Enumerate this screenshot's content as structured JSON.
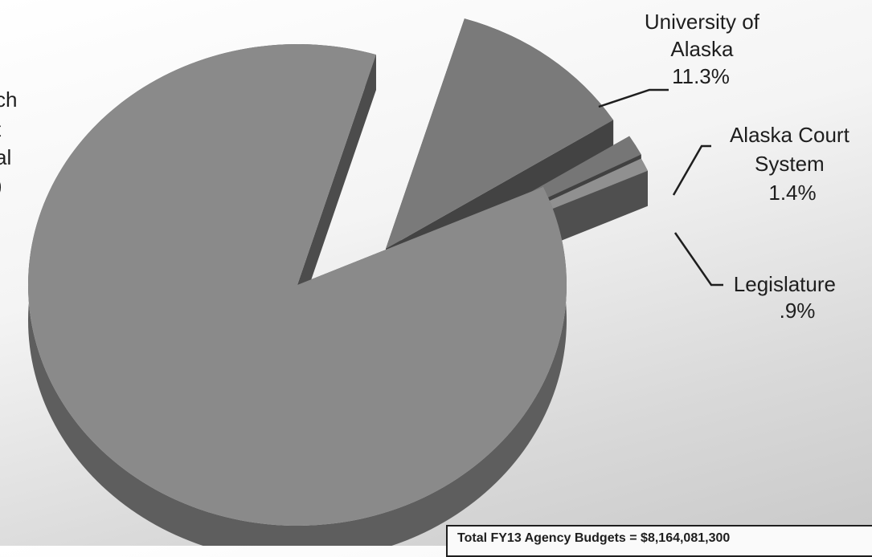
{
  "chart_data": {
    "type": "pie",
    "style": "3d-exploded",
    "slices": [
      {
        "label": "University of Alaska",
        "value": 11.3,
        "display": "11.3%",
        "color": "#7a7a7a"
      },
      {
        "label": "Alaska Court System",
        "value": 1.4,
        "display": "1.4%",
        "color": "#767676"
      },
      {
        "label": "Legislature",
        "value": 0.9,
        "display": ".9%",
        "color": "#909090"
      },
      {
        "label": "",
        "value": 86.4,
        "display": "",
        "color": "#8a8a8a"
      }
    ],
    "partial_label": [
      "ch",
      "t",
      "al",
      ")"
    ],
    "total_note": "Total FY13 Agency Budgets = $8,164,081,300"
  }
}
